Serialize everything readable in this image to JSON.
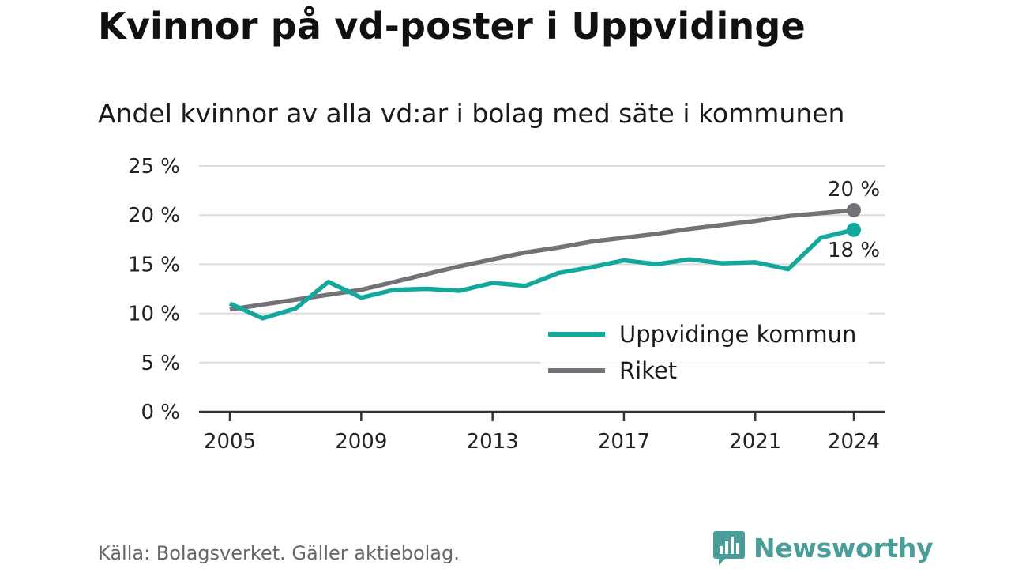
{
  "header": {
    "title": "Kvinnor på vd-poster i Uppvidinge",
    "subtitle": "Andel kvinnor av alla vd:ar i bolag med säte i kommunen"
  },
  "footer": {
    "source": "Källa: Bolagsverket. Gäller aktiebolag.",
    "brand": "Newsworthy",
    "brand_icon": "newsworthy-chart-icon",
    "brand_color": "#4a9e99"
  },
  "chart_data": {
    "type": "line",
    "title": "Kvinnor på vd-poster i Uppvidinge",
    "subtitle": "Andel kvinnor av alla vd:ar i bolag med säte i kommunen",
    "xlabel": "",
    "ylabel": "",
    "x": [
      2005,
      2006,
      2007,
      2008,
      2009,
      2010,
      2011,
      2012,
      2013,
      2014,
      2015,
      2016,
      2017,
      2018,
      2019,
      2020,
      2021,
      2022,
      2023,
      2024
    ],
    "x_ticks": [
      "2005",
      "2009",
      "2013",
      "2017",
      "2021",
      "2024"
    ],
    "y_ticks": [
      "0 %",
      "5 %",
      "10 %",
      "15 %",
      "20 %",
      "25 %"
    ],
    "ylim": [
      0,
      25
    ],
    "grid": true,
    "legend_position": "bottom-right",
    "series": [
      {
        "name": "Uppvidinge kommun",
        "color": "#12a89c",
        "values": [
          11.0,
          9.5,
          10.5,
          13.2,
          11.6,
          12.4,
          12.5,
          12.3,
          13.1,
          12.8,
          14.1,
          14.7,
          15.4,
          15.0,
          15.5,
          15.1,
          15.2,
          14.5,
          17.7,
          18.5
        ],
        "end_label": "18 %"
      },
      {
        "name": "Riket",
        "color": "#737278",
        "values": [
          10.4,
          10.9,
          11.4,
          11.9,
          12.4,
          13.2,
          14.0,
          14.8,
          15.5,
          16.2,
          16.7,
          17.3,
          17.7,
          18.1,
          18.6,
          19.0,
          19.4,
          19.9,
          20.2,
          20.5
        ],
        "end_label": "20 %"
      }
    ]
  }
}
